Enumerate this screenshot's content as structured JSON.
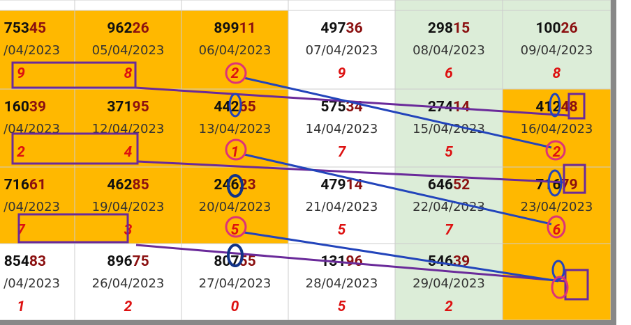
{
  "rows": [
    [
      {
        "head": "753",
        "tail": "45",
        "date": "/04/2023",
        "digit": "9"
      },
      {
        "head": "962",
        "tail": "26",
        "date": "05/04/2023",
        "digit": "8"
      },
      {
        "head": "899",
        "tail": "11",
        "date": "06/04/2023",
        "digit": "2"
      },
      {
        "head": "497",
        "tail": "36",
        "date": "07/04/2023",
        "digit": "9"
      },
      {
        "head": "298",
        "tail": "15",
        "date": "08/04/2023",
        "digit": "6"
      },
      {
        "head": "100",
        "tail": "26",
        "date": "09/04/2023",
        "digit": "8"
      }
    ],
    [
      {
        "head": "160",
        "tail": "39",
        "date": "/04/2023",
        "digit": "2"
      },
      {
        "head": "371",
        "tail": "95",
        "date": "12/04/2023",
        "digit": "4"
      },
      {
        "head": "442",
        "tail": "65",
        "date": "13/04/2023",
        "digit": "1"
      },
      {
        "head": "575",
        "tail": "34",
        "date": "14/04/2023",
        "digit": "7"
      },
      {
        "head": "274",
        "tail": "14",
        "date": "15/04/2023",
        "digit": "5"
      },
      {
        "head": "412",
        "tail": "48",
        "date": "16/04/2023",
        "digit": "2"
      }
    ],
    [
      {
        "head": "716",
        "tail": "61",
        "date": "/04/2023",
        "digit": "7"
      },
      {
        "head": "462",
        "tail": "85",
        "date": "19/04/2023",
        "digit": "3"
      },
      {
        "head": "246",
        "tail": "23",
        "date": "20/04/2023",
        "digit": "5"
      },
      {
        "head": "479",
        "tail": "14",
        "date": "21/04/2023",
        "digit": "5"
      },
      {
        "head": "646",
        "tail": "52",
        "date": "22/04/2023",
        "digit": "7"
      },
      {
        "head": "716",
        "tail": "79",
        "date": "23/04/2023",
        "digit": "6"
      }
    ],
    [
      {
        "head": "854",
        "tail": "83",
        "date": "/04/2023",
        "digit": "1"
      },
      {
        "head": "896",
        "tail": "75",
        "date": "26/04/2023",
        "digit": "2"
      },
      {
        "head": "807",
        "tail": "55",
        "date": "27/04/2023",
        "digit": "0"
      },
      {
        "head": "131",
        "tail": "96",
        "date": "28/04/2023",
        "digit": "5"
      },
      {
        "head": "546",
        "tail": "39",
        "date": "29/04/2023",
        "digit": "2"
      }
    ]
  ]
}
